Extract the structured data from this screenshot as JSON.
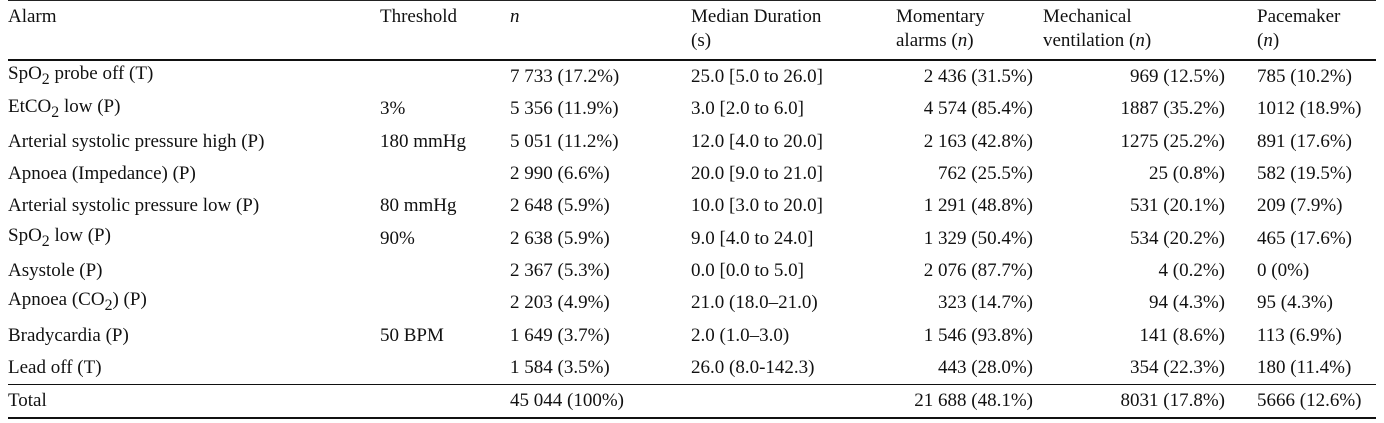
{
  "table": {
    "headers": {
      "alarm": "Alarm",
      "threshold": "Threshold",
      "n": "n",
      "median_duration_line1": "Median Duration",
      "median_duration_line2": "(s)",
      "momentary_line1": "Momentary",
      "momentary_line2_text": "alarms",
      "momentary_line2_n": "(n)",
      "mechanical_line1": "Mechanical",
      "mechanical_line2_text": "ventilation",
      "mechanical_line2_n": "(n)",
      "pacemaker_line1": "Pacemaker",
      "pacemaker_line2": "(n)"
    },
    "rows": [
      {
        "alarm_pre": "SpO",
        "alarm_sub": "2",
        "alarm_post": " probe off (T)",
        "threshold": "",
        "n": "7 733 (17.2%)",
        "median_duration": "25.0 [5.0 to 26.0]",
        "momentary": "2 436 (31.5%)",
        "mechanical": "969 (12.5%)",
        "pacemaker": "785 (10.2%)"
      },
      {
        "alarm_pre": "EtCO",
        "alarm_sub": "2",
        "alarm_post": " low (P)",
        "threshold": "3%",
        "n": "5 356 (11.9%)",
        "median_duration": "3.0 [2.0 to 6.0]",
        "momentary": "4 574 (85.4%)",
        "mechanical": "1887 (35.2%)",
        "pacemaker": "1012 (18.9%)"
      },
      {
        "alarm_pre": "Arterial systolic pressure high (P)",
        "alarm_sub": "",
        "alarm_post": "",
        "threshold": "180 mmHg",
        "n": "5 051 (11.2%)",
        "median_duration": "12.0 [4.0 to 20.0]",
        "momentary": "2 163 (42.8%)",
        "mechanical": "1275 (25.2%)",
        "pacemaker": "891 (17.6%)"
      },
      {
        "alarm_pre": "Apnoea (Impedance) (P)",
        "alarm_sub": "",
        "alarm_post": "",
        "threshold": "",
        "n": "2 990 (6.6%)",
        "median_duration": "20.0 [9.0 to 21.0]",
        "momentary": "762 (25.5%)",
        "mechanical": "25 (0.8%)",
        "pacemaker": "582 (19.5%)"
      },
      {
        "alarm_pre": "Arterial systolic pressure low (P)",
        "alarm_sub": "",
        "alarm_post": "",
        "threshold": "80 mmHg",
        "n": "2 648 (5.9%)",
        "median_duration": "10.0 [3.0 to 20.0]",
        "momentary": "1 291 (48.8%)",
        "mechanical": "531 (20.1%)",
        "pacemaker": "209 (7.9%)"
      },
      {
        "alarm_pre": "SpO",
        "alarm_sub": "2",
        "alarm_post": " low (P)",
        "threshold": "90%",
        "n": "2 638 (5.9%)",
        "median_duration": "9.0 [4.0 to 24.0]",
        "momentary": "1 329 (50.4%)",
        "mechanical": "534 (20.2%)",
        "pacemaker": "465 (17.6%)"
      },
      {
        "alarm_pre": "Asystole (P)",
        "alarm_sub": "",
        "alarm_post": "",
        "threshold": "",
        "n": "2 367 (5.3%)",
        "median_duration": "0.0 [0.0 to 5.0]",
        "momentary": "2 076 (87.7%)",
        "mechanical": "4 (0.2%)",
        "pacemaker": "0 (0%)"
      },
      {
        "alarm_pre": "Apnoea (CO",
        "alarm_sub": "2",
        "alarm_post": ") (P)",
        "threshold": "",
        "n": "2 203 (4.9%)",
        "median_duration": "21.0 (18.0–21.0)",
        "momentary": "323 (14.7%)",
        "mechanical": "94 (4.3%)",
        "pacemaker": "95 (4.3%)"
      },
      {
        "alarm_pre": "Bradycardia (P)",
        "alarm_sub": "",
        "alarm_post": "",
        "threshold": "50 BPM",
        "n": "1 649 (3.7%)",
        "median_duration": "2.0 (1.0–3.0)",
        "momentary": "1 546 (93.8%)",
        "mechanical": "141 (8.6%)",
        "pacemaker": "113 (6.9%)"
      },
      {
        "alarm_pre": "Lead off (T)",
        "alarm_sub": "",
        "alarm_post": "",
        "threshold": "",
        "n": "1 584 (3.5%)",
        "median_duration": "26.0 (8.0-142.3)",
        "momentary": "443 (28.0%)",
        "mechanical": "354 (22.3%)",
        "pacemaker": "180 (11.4%)"
      }
    ],
    "total": {
      "alarm": "Total",
      "threshold": "",
      "n": "45 044 (100%)",
      "median_duration": "",
      "momentary": "21 688 (48.1%)",
      "mechanical": "8031 (17.8%)",
      "pacemaker": "5666 (12.6%)"
    }
  }
}
